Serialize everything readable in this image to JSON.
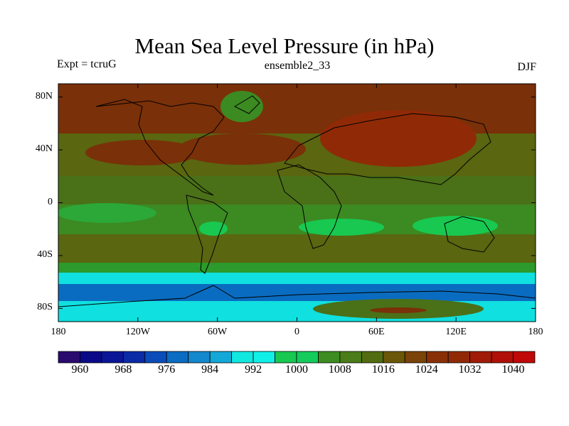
{
  "title": "Mean Sea Level Pressure (in hPa)",
  "left_label": "Expt = tcruG",
  "center_label": "ensemble2_33",
  "right_label": "DJF",
  "lat_ticks": [
    {
      "lat": 80,
      "label": "80N"
    },
    {
      "lat": 40,
      "label": "40N"
    },
    {
      "lat": 0,
      "label": "0"
    },
    {
      "lat": -40,
      "label": "40S"
    },
    {
      "lat": -80,
      "label": "80S"
    }
  ],
  "lon_ticks": [
    {
      "lon": -180,
      "label": "180"
    },
    {
      "lon": -120,
      "label": "120W"
    },
    {
      "lon": -60,
      "label": "60W"
    },
    {
      "lon": 0,
      "label": "0"
    },
    {
      "lon": 60,
      "label": "60E"
    },
    {
      "lon": 120,
      "label": "120E"
    },
    {
      "lon": 180,
      "label": "180"
    }
  ],
  "colorbar": {
    "labels": [
      "960",
      "968",
      "976",
      "984",
      "992",
      "1000",
      "1008",
      "1016",
      "1024",
      "1032",
      "1040"
    ],
    "colors": [
      "#2a0a6e",
      "#0a0a88",
      "#0a1696",
      "#0a2aa6",
      "#0a4cb8",
      "#0a6cc2",
      "#1488cc",
      "#14a8d8",
      "#10e8e0",
      "#10f0e8",
      "#18c850",
      "#14cc5c",
      "#3c8c20",
      "#4a7c18",
      "#526c10",
      "#6a5808",
      "#7a4408",
      "#8a3006",
      "#902a06",
      "#a01c06",
      "#b01006",
      "#c00808"
    ]
  },
  "colors": {
    "ocean_high": "#7a3008",
    "ocean_mid": "#5a6610",
    "ocean_low": "#3c8a22",
    "subtropic": "#18c850",
    "south_band": "#10e0e0",
    "deep_low": "#0a6cc0",
    "coast": "#000000"
  }
}
